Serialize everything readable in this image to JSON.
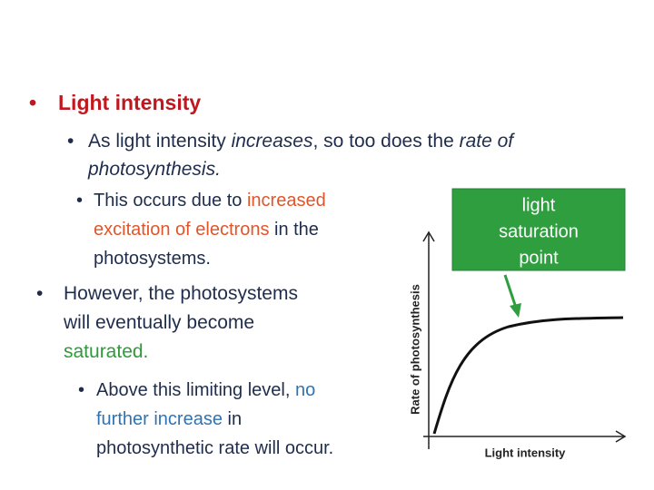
{
  "slide": {
    "bullets": [
      [
        "Light intensity"
      ],
      [
        "As light intensity ",
        "increases",
        ", so too does the ",
        "rate of",
        "photosynthesis."
      ],
      [
        "This occurs due to ",
        "increased",
        "excitation of electrons",
        " in the",
        "photosystems."
      ],
      [
        "However, the photosystems",
        "will eventually become",
        "saturated."
      ],
      [
        "Above this limiting level, ",
        "no",
        "further increase",
        " in",
        "photosynthetic rate will occur."
      ]
    ],
    "graph": {
      "y_label": "Rate of photosynthesis",
      "x_label": "Light intensity",
      "callout": [
        "light",
        "saturation",
        "point"
      ]
    }
  }
}
